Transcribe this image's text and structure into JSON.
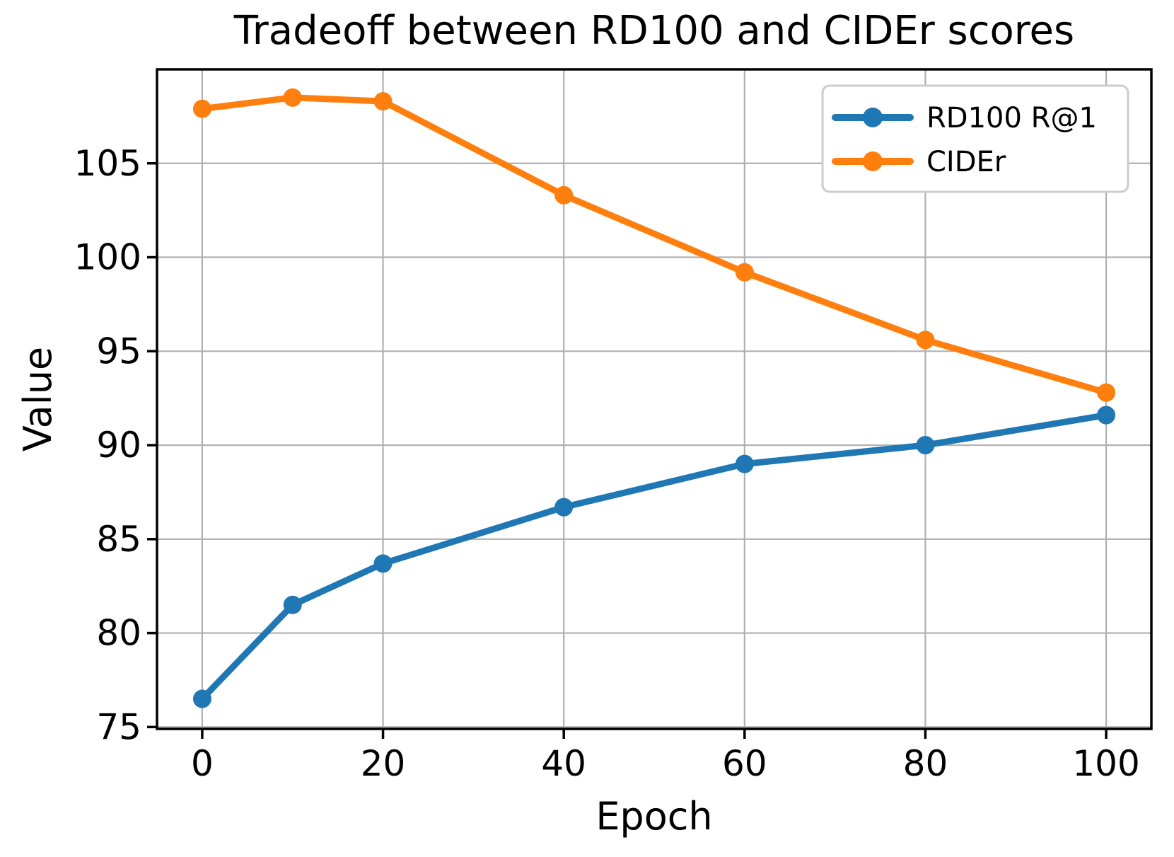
{
  "chart_data": {
    "type": "line",
    "title": "Tradeoff between RD100 and CIDEr scores",
    "xlabel": "Epoch",
    "ylabel": "Value",
    "x": [
      0,
      10,
      20,
      40,
      60,
      80,
      100
    ],
    "series": [
      {
        "name": "RD100 R@1",
        "color": "#1f77b4",
        "values": [
          76.5,
          81.5,
          83.7,
          86.7,
          89.0,
          90.0,
          91.6
        ]
      },
      {
        "name": "CIDEr",
        "color": "#ff7f0e",
        "values": [
          107.9,
          108.5,
          108.3,
          103.3,
          99.2,
          95.6,
          92.8
        ]
      }
    ],
    "xticks": [
      0,
      20,
      40,
      60,
      80,
      100
    ],
    "yticks": [
      75,
      80,
      85,
      90,
      95,
      100,
      105
    ],
    "xlim": [
      -5,
      105
    ],
    "ylim": [
      74.9,
      110.0
    ],
    "grid": true,
    "legend": {
      "position": "upper right",
      "entries": [
        "RD100 R@1",
        "CIDEr"
      ]
    },
    "colors": {
      "background": "#ffffff",
      "grid": "#b0b0b0",
      "spine": "#000000",
      "legend_border": "#cccccc"
    }
  }
}
